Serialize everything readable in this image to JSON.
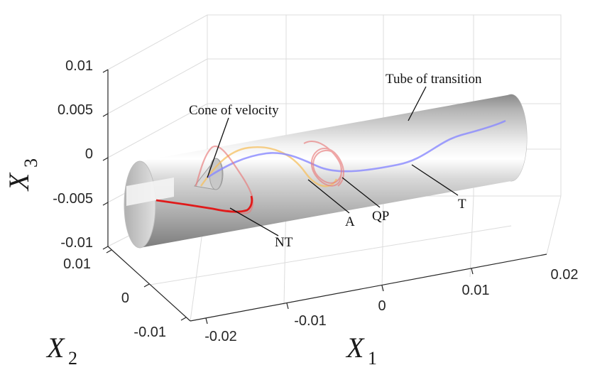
{
  "chart_data": {
    "type": "3d-line",
    "xlabel": {
      "symbol": "X",
      "sub": "1"
    },
    "ylabel": {
      "symbol": "X",
      "sub": "2"
    },
    "zlabel": {
      "symbol": "X",
      "sub": "3"
    },
    "x_ticks": [
      "-0.02",
      "-0.01",
      "0",
      "0.01",
      "0.02"
    ],
    "y_ticks": [
      "0.01",
      "0",
      "-0.01"
    ],
    "z_ticks": [
      "0.01",
      "0.005",
      "0",
      "-0.005",
      "-0.01"
    ],
    "xlim": [
      -0.02,
      0.02
    ],
    "ylim": [
      -0.01,
      0.01
    ],
    "zlim": [
      -0.01,
      0.01
    ],
    "series": [
      {
        "name": "NT",
        "color": "#e01a1a"
      },
      {
        "name": "A",
        "color": "#f5c060"
      },
      {
        "name": "QP",
        "color": "#e87a7a"
      },
      {
        "name": "T",
        "color": "#8888ff"
      }
    ],
    "annotations": [
      "Tube of transition",
      "Cone of velocity",
      "NT",
      "A",
      "QP",
      "T"
    ]
  }
}
